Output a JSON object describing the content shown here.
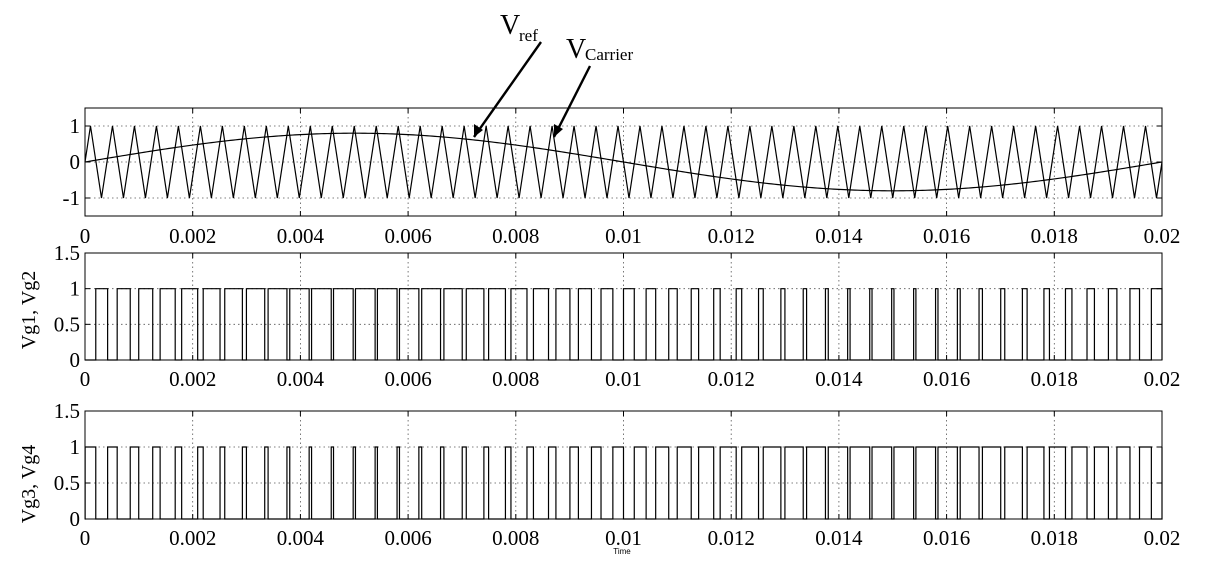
{
  "chart_data": [
    {
      "type": "line",
      "panel": "carrier-reference",
      "ylabel": "",
      "xlim": [
        0,
        0.02
      ],
      "ylim": [
        -1.5,
        1.5
      ],
      "yticks": [
        "1",
        "0",
        "-1"
      ],
      "ytick_values": [
        1,
        0,
        -1
      ],
      "xticks": [
        "0",
        "0.002",
        "0.004",
        "0.006",
        "0.008",
        "0.01",
        "0.012",
        "0.014",
        "0.016",
        "0.018",
        "0.02"
      ],
      "grid": true,
      "series": [
        {
          "name": "Vref",
          "kind": "sine",
          "amplitude": 0.8,
          "frequency_hz": 50,
          "phase_deg": 0
        },
        {
          "name": "VCarrier",
          "kind": "triangle",
          "amplitude": 1,
          "frequency_hz": 2450,
          "phase_deg": 0
        }
      ],
      "annotations": [
        {
          "text": "V",
          "sub": "ref",
          "points_to": {
            "x": 0.007,
            "y": 0.75
          }
        },
        {
          "text": "V",
          "sub": "Carrier",
          "points_to": {
            "x": 0.0087,
            "y": 0.8
          }
        }
      ]
    },
    {
      "type": "line",
      "panel": "gate-1-2",
      "ylabel": "Vg1, Vg2",
      "xlim": [
        0,
        0.02
      ],
      "ylim": [
        0,
        1.5
      ],
      "yticks": [
        "1.5",
        "1",
        "0.5",
        "0"
      ],
      "ytick_values": [
        1.5,
        1,
        0.5,
        0
      ],
      "xticks": [
        "0",
        "0.002",
        "0.004",
        "0.006",
        "0.008",
        "0.01",
        "0.012",
        "0.014",
        "0.016",
        "0.018",
        "0.02"
      ],
      "grid": true,
      "series": [
        {
          "name": "Vg1, Vg2",
          "kind": "pwm",
          "high": 1,
          "low": 0,
          "compare": "ref > carrier"
        }
      ]
    },
    {
      "type": "line",
      "panel": "gate-3-4",
      "ylabel": "Vg3, Vg4",
      "xlabel": "Time",
      "xlim": [
        0,
        0.02
      ],
      "ylim": [
        0,
        1.5
      ],
      "yticks": [
        "1.5",
        "1",
        "0.5",
        "0"
      ],
      "ytick_values": [
        1.5,
        1,
        0.5,
        0
      ],
      "xticks": [
        "0",
        "0.002",
        "0.004",
        "0.006",
        "0.008",
        "0.01",
        "0.012",
        "0.014",
        "0.016",
        "0.018",
        "0.02"
      ],
      "grid": true,
      "series": [
        {
          "name": "Vg3, Vg4",
          "kind": "pwm",
          "high": 1,
          "low": 0,
          "compare": "ref < carrier"
        }
      ]
    }
  ],
  "labels": {
    "vref_main": "V",
    "vref_sub": "ref",
    "vcarrier_main": "V",
    "vcarrier_sub": "Carrier",
    "ylabel_2": "Vg1, Vg2",
    "ylabel_3": "Vg3, Vg4",
    "xlabel_3": "Time"
  }
}
